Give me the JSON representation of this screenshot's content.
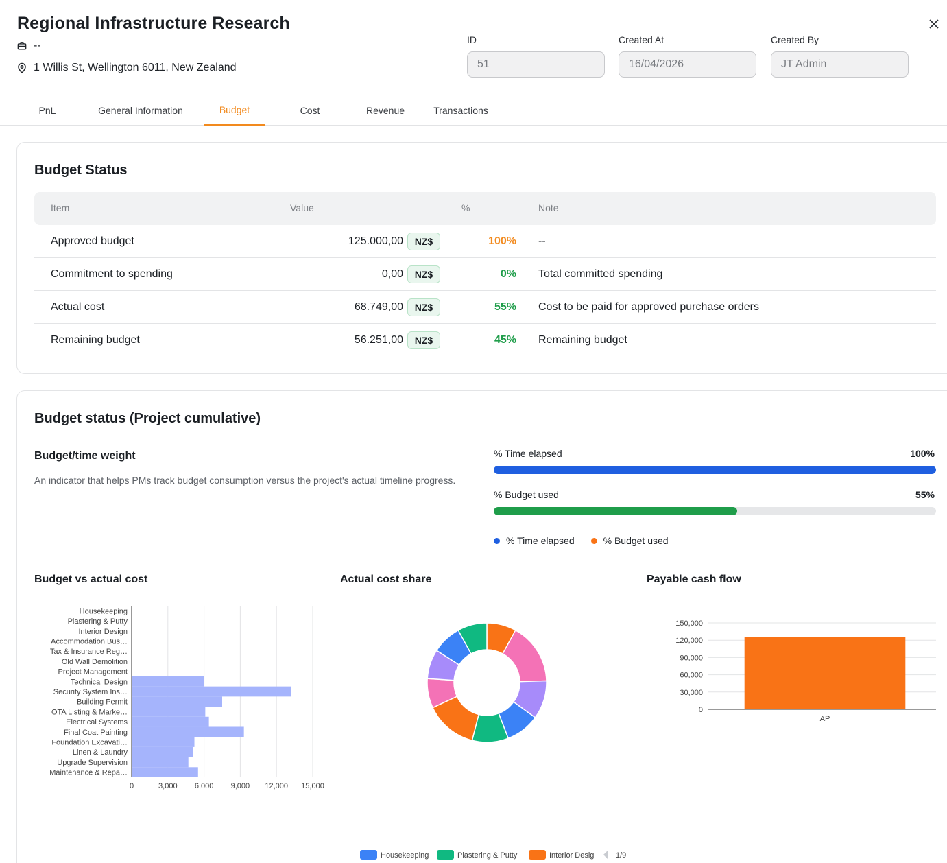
{
  "header": {
    "title": "Regional Infrastructure Research",
    "company": "--",
    "address": "1 Willis St, Wellington 6011, New Zealand",
    "fields": [
      {
        "label": "ID",
        "value": "51"
      },
      {
        "label": "Created At",
        "value": "16/04/2026"
      },
      {
        "label": "Created By",
        "value": "JT Admin"
      }
    ]
  },
  "tabs": [
    {
      "label": "PnL",
      "active": false
    },
    {
      "label": "General Information",
      "active": false
    },
    {
      "label": "Budget",
      "active": true
    },
    {
      "label": "Cost",
      "active": false
    },
    {
      "label": "Revenue",
      "active": false
    },
    {
      "label": "Transactions",
      "active": false
    }
  ],
  "budget_status": {
    "title": "Budget Status",
    "columns": [
      "Item",
      "Value",
      "%",
      "Note"
    ],
    "rows": [
      {
        "item": "Approved budget",
        "value": "125.000,00",
        "currency": "NZ$",
        "pct": "100%",
        "pct_color": "#f28a1e",
        "note": "--"
      },
      {
        "item": "Commitment to spending",
        "value": "0,00",
        "currency": "NZ$",
        "pct": "0%",
        "pct_color": "#1f9d4a",
        "note": "Total committed spending"
      },
      {
        "item": "Actual cost",
        "value": "68.749,00",
        "currency": "NZ$",
        "pct": "55%",
        "pct_color": "#1f9d4a",
        "note": "Cost to be paid for approved purchase orders"
      },
      {
        "item": "Remaining budget",
        "value": "56.251,00",
        "currency": "NZ$",
        "pct": "45%",
        "pct_color": "#1f9d4a",
        "note": "Remaining budget"
      }
    ]
  },
  "cumulative": {
    "title": "Budget status (Project cumulative)",
    "weight_title": "Budget/time weight",
    "weight_desc": "An indicator that helps PMs track budget consumption versus the project's actual timeline progress.",
    "time_label": "% Time elapsed",
    "time_value": "100%",
    "time_fraction": 1.0,
    "time_color": "#1f5fe0",
    "budget_label": "% Budget used",
    "budget_value": "55%",
    "budget_fraction": 0.55,
    "budget_color": "#1f9d4a",
    "legend": [
      {
        "label": "% Time elapsed",
        "color": "#1f5fe0"
      },
      {
        "label": "% Budget used",
        "color": "#f97316"
      }
    ]
  },
  "charts": {
    "bar_title": "Budget vs actual cost",
    "donut_title": "Actual cost share",
    "cash_title": "Payable cash flow",
    "legend_page": "1/9"
  },
  "chart_data": [
    {
      "type": "bar",
      "orientation": "horizontal",
      "categories": [
        "Housekeeping",
        "Plastering & Putty",
        "Interior Design",
        "Accommodation Bus…",
        "Tax & Insurance Reg…",
        "Old Wall Demolition",
        "Project Management",
        "Technical Design",
        "Security System Ins…",
        "Building Permit",
        "OTA Listing & Marke…",
        "Electrical Systems",
        "Final Coat Painting",
        "Foundation Excavati…",
        "Linen & Laundry",
        "Upgrade Supervision",
        "Maintenance & Repa…"
      ],
      "values": [
        0,
        0,
        0,
        0,
        0,
        0,
        0,
        6000,
        13200,
        7500,
        6100,
        6400,
        9300,
        5200,
        5100,
        4700,
        5500
      ],
      "xticks": [
        "0",
        "3,000",
        "6,000",
        "9,000",
        "12,000",
        "15,000"
      ],
      "xlim": [
        0,
        15000
      ],
      "color": "#a5b4fc",
      "grid": true
    },
    {
      "type": "pie",
      "donut": true,
      "slices": [
        {
          "label": "Interior Design",
          "value": 6.5,
          "color": "#f97316"
        },
        {
          "label": "Pink",
          "value": 13.5,
          "color": "#f472b6"
        },
        {
          "label": "Purple",
          "value": 8.5,
          "color": "#a78bfa"
        },
        {
          "label": "Blue",
          "value": 7.5,
          "color": "#3b82f6"
        },
        {
          "label": "Green",
          "value": 8.0,
          "color": "#10b981"
        },
        {
          "label": "Orange",
          "value": 11.5,
          "color": "#f97316"
        },
        {
          "label": "Pink",
          "value": 6.5,
          "color": "#f472b6"
        },
        {
          "label": "Purple",
          "value": 6.5,
          "color": "#a78bfa"
        },
        {
          "label": "Blue",
          "value": 6.5,
          "color": "#3b82f6"
        },
        {
          "label": "Plastering & Putty",
          "value": 6.5,
          "color": "#10b981"
        }
      ],
      "legend": [
        {
          "label": "Housekeeping",
          "color": "#3b82f6"
        },
        {
          "label": "Plastering & Putty",
          "color": "#10b981"
        },
        {
          "label": "Interior Desig",
          "color": "#f97316"
        }
      ]
    },
    {
      "type": "bar",
      "categories": [
        "AP"
      ],
      "values": [
        125000
      ],
      "yticks": [
        "0",
        "30,000",
        "60,000",
        "90,000",
        "120,000",
        "150,000"
      ],
      "ylim": [
        0,
        150000
      ],
      "color": "#f97316",
      "grid": true
    }
  ]
}
